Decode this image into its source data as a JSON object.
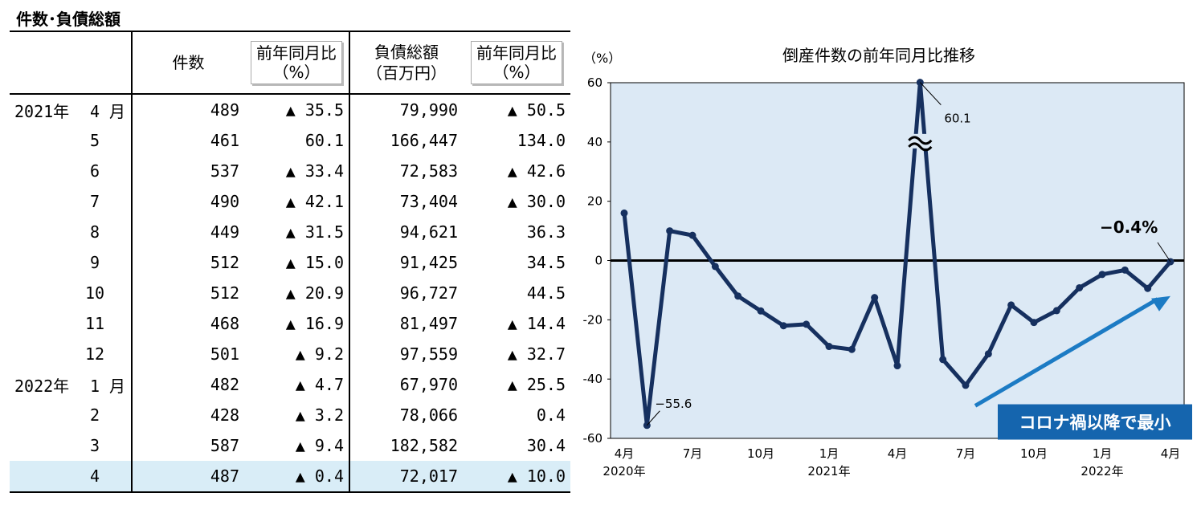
{
  "table": {
    "title": "件数･負債総額",
    "headers": {
      "count": "件数",
      "count_yoy_line1": "前年同月比",
      "count_yoy_line2": "（%）",
      "debt_line1": "負債総額",
      "debt_line2": "（百万円）",
      "debt_yoy_line1": "前年同月比",
      "debt_yoy_line2": "（%）"
    },
    "rows": [
      {
        "year": "2021年",
        "month": "4",
        "month_suffix": "月",
        "count": "489",
        "count_yoy": "▲ 35.5",
        "debt": "79,990",
        "debt_yoy": "▲ 50.5"
      },
      {
        "year": "",
        "month": "5",
        "month_suffix": "",
        "count": "461",
        "count_yoy": "60.1",
        "debt": "166,447",
        "debt_yoy": "134.0"
      },
      {
        "year": "",
        "month": "6",
        "month_suffix": "",
        "count": "537",
        "count_yoy": "▲ 33.4",
        "debt": "72,583",
        "debt_yoy": "▲ 42.6"
      },
      {
        "year": "",
        "month": "7",
        "month_suffix": "",
        "count": "490",
        "count_yoy": "▲ 42.1",
        "debt": "73,404",
        "debt_yoy": "▲ 30.0"
      },
      {
        "year": "",
        "month": "8",
        "month_suffix": "",
        "count": "449",
        "count_yoy": "▲ 31.5",
        "debt": "94,621",
        "debt_yoy": "36.3"
      },
      {
        "year": "",
        "month": "9",
        "month_suffix": "",
        "count": "512",
        "count_yoy": "▲ 15.0",
        "debt": "91,425",
        "debt_yoy": "34.5"
      },
      {
        "year": "",
        "month": "10",
        "month_suffix": "",
        "count": "512",
        "count_yoy": "▲ 20.9",
        "debt": "96,727",
        "debt_yoy": "44.5"
      },
      {
        "year": "",
        "month": "11",
        "month_suffix": "",
        "count": "468",
        "count_yoy": "▲ 16.9",
        "debt": "81,497",
        "debt_yoy": "▲ 14.4"
      },
      {
        "year": "",
        "month": "12",
        "month_suffix": "",
        "count": "501",
        "count_yoy": "▲ 9.2",
        "debt": "97,559",
        "debt_yoy": "▲ 32.7"
      },
      {
        "year": "2022年",
        "month": "1",
        "month_suffix": "月",
        "count": "482",
        "count_yoy": "▲ 4.7",
        "debt": "67,970",
        "debt_yoy": "▲ 25.5"
      },
      {
        "year": "",
        "month": "2",
        "month_suffix": "",
        "count": "428",
        "count_yoy": "▲ 3.2",
        "debt": "78,066",
        "debt_yoy": "0.4"
      },
      {
        "year": "",
        "month": "3",
        "month_suffix": "",
        "count": "587",
        "count_yoy": "▲ 9.4",
        "debt": "182,582",
        "debt_yoy": "30.4"
      },
      {
        "year": "",
        "month": "4",
        "month_suffix": "",
        "count": "487",
        "count_yoy": "▲ 0.4",
        "debt": "72,017",
        "debt_yoy": "▲ 10.0",
        "highlight": true
      }
    ]
  },
  "chart_data": {
    "type": "line",
    "title": "倒産件数の前年同月比推移",
    "ylabel": "（%）",
    "ylim": [
      -60,
      60
    ],
    "yticks": [
      60,
      40,
      20,
      0,
      -20,
      -40,
      -60
    ],
    "x_tick_labels": [
      "4月",
      "7月",
      "10月",
      "1月",
      "4月",
      "7月",
      "10月",
      "1月",
      "4月"
    ],
    "x_tick_indices": [
      0,
      3,
      6,
      9,
      12,
      15,
      18,
      21,
      24
    ],
    "x_year_labels": [
      "2020年",
      "2021年",
      "2022年"
    ],
    "x_year_indices": [
      0,
      9,
      21
    ],
    "x": [
      "2020-04",
      "2020-05",
      "2020-06",
      "2020-07",
      "2020-08",
      "2020-09",
      "2020-10",
      "2020-11",
      "2020-12",
      "2021-01",
      "2021-02",
      "2021-03",
      "2021-04",
      "2021-05",
      "2021-06",
      "2021-07",
      "2021-08",
      "2021-09",
      "2021-10",
      "2021-11",
      "2021-12",
      "2022-01",
      "2022-02",
      "2022-03",
      "2022-04"
    ],
    "series": [
      {
        "values": [
          16.0,
          -55.6,
          10.0,
          8.5,
          -2.0,
          -12.0,
          -17.0,
          -22.0,
          -21.5,
          -29.0,
          -30.0,
          -12.5,
          -35.5,
          60.1,
          -33.4,
          -42.1,
          -31.5,
          -15.0,
          -20.9,
          -16.9,
          -9.2,
          -4.7,
          -3.2,
          -9.4,
          -0.4
        ],
        "color": "#16305f"
      }
    ],
    "plot_background": "#dce9f5",
    "zero_line": true,
    "axis_break_at_index": 13,
    "annotations": {
      "min_label": "−55.6",
      "max_label": "60.1",
      "last_label": "−0.4%",
      "callout": "コロナ禍以降で最小",
      "callout_color": "#1565ae",
      "trend_arrow_color": "#1c7bc4"
    }
  }
}
